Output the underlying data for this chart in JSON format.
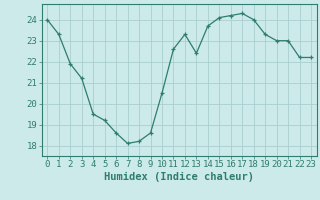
{
  "x": [
    0,
    1,
    2,
    3,
    4,
    5,
    6,
    7,
    8,
    9,
    10,
    11,
    12,
    13,
    14,
    15,
    16,
    17,
    18,
    19,
    20,
    21,
    22,
    23
  ],
  "y": [
    24.0,
    23.3,
    21.9,
    21.2,
    19.5,
    19.2,
    18.6,
    18.1,
    18.2,
    18.6,
    20.5,
    22.6,
    23.3,
    22.4,
    23.7,
    24.1,
    24.2,
    24.3,
    24.0,
    23.3,
    23.0,
    23.0,
    22.2,
    22.2
  ],
  "line_color": "#2e7d6e",
  "marker": "+",
  "marker_size": 3,
  "bg_color": "#cceaea",
  "grid_color": "#aacece",
  "axis_color": "#2e7d6e",
  "xlabel": "Humidex (Indice chaleur)",
  "xlim": [
    -0.5,
    23.5
  ],
  "ylim": [
    17.5,
    24.75
  ],
  "yticks": [
    18,
    19,
    20,
    21,
    22,
    23,
    24
  ],
  "xticks": [
    0,
    1,
    2,
    3,
    4,
    5,
    6,
    7,
    8,
    9,
    10,
    11,
    12,
    13,
    14,
    15,
    16,
    17,
    18,
    19,
    20,
    21,
    22,
    23
  ],
  "xtick_labels": [
    "0",
    "1",
    "2",
    "3",
    "4",
    "5",
    "6",
    "7",
    "8",
    "9",
    "10",
    "11",
    "12",
    "13",
    "14",
    "15",
    "16",
    "17",
    "18",
    "19",
    "20",
    "21",
    "22",
    "23"
  ],
  "tick_font_size": 6.5,
  "label_font_size": 7.5
}
